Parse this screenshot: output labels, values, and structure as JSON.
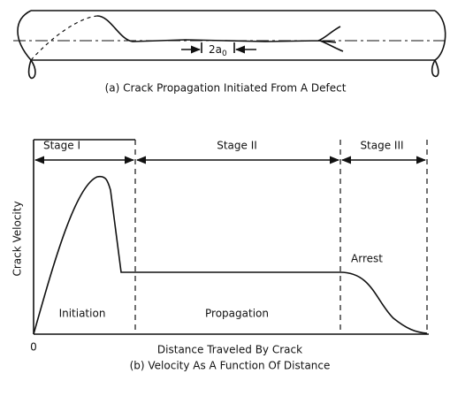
{
  "panel_a": {
    "crack_length_label": {
      "base": "2a",
      "sub": "0"
    },
    "caption": "(a) Crack Propagation Initiated From A Defect"
  },
  "panel_b": {
    "y_axis_label": "Crack Velocity",
    "x_axis_label": "Distance Traveled By Crack",
    "origin_label": "0",
    "stages": [
      "Stage I",
      "Stage II",
      "Stage III"
    ],
    "regions": [
      "Initiation",
      "Propagation",
      "Arrest"
    ],
    "caption": "(b) Velocity As A Function Of Distance"
  }
}
